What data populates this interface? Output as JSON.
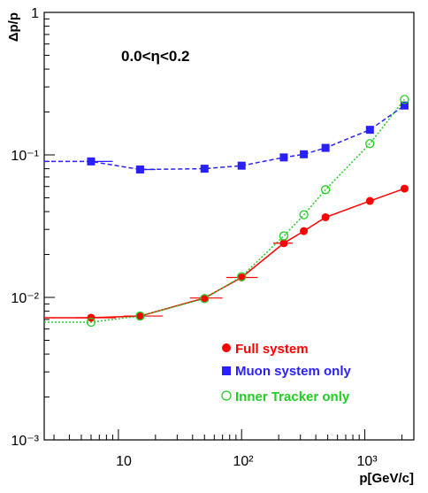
{
  "chart_data": {
    "type": "scatter",
    "title": "",
    "annotation": "0.0<η<0.2",
    "xlabel": "p[GeV/c]",
    "ylabel": "Δp/p",
    "xscale": "log",
    "yscale": "log",
    "xlim": [
      2.5,
      2500
    ],
    "ylim": [
      0.001,
      1
    ],
    "x_tick_labels": [
      "10",
      "10²",
      "10³"
    ],
    "y_tick_labels": [
      "10⁻³",
      "10⁻²",
      "10⁻¹",
      "1"
    ],
    "grid": false,
    "legend_position": "bottom-right",
    "series": [
      {
        "name": "Full system",
        "color": "#ff0000",
        "marker": "filled-circle",
        "line": "solid",
        "x": [
          6,
          15,
          50,
          100,
          220,
          320,
          480,
          1100,
          2100
        ],
        "y": [
          0.0072,
          0.0074,
          0.0099,
          0.0138,
          0.024,
          0.0292,
          0.0365,
          0.0475,
          0.058
        ],
        "xerr": [
          [
            1.5,
            3.5
          ],
          [
            4,
            8
          ],
          [
            12,
            20
          ],
          [
            25,
            35
          ],
          [
            40,
            40
          ],
          [
            0,
            0
          ],
          [
            0,
            0
          ],
          [
            0,
            0
          ],
          [
            0,
            0
          ]
        ]
      },
      {
        "name": "Muon system only",
        "color": "#2a1fff",
        "marker": "filled-square",
        "line": "dashed",
        "x": [
          6,
          15,
          50,
          100,
          220,
          320,
          480,
          1100,
          2100
        ],
        "y": [
          0.09,
          0.079,
          0.08,
          0.084,
          0.096,
          0.101,
          0.112,
          0.15,
          0.222
        ],
        "xerr": [
          [
            0,
            3
          ],
          [
            0,
            5
          ],
          [
            0,
            0
          ],
          [
            0,
            0
          ],
          [
            0,
            0
          ],
          [
            0,
            0
          ],
          [
            0,
            0
          ],
          [
            0,
            0
          ],
          [
            0,
            0
          ]
        ]
      },
      {
        "name": "Inner Tracker only",
        "color": "#22cc22",
        "marker": "open-circle",
        "line": "dotted",
        "x": [
          6,
          15,
          50,
          100,
          220,
          320,
          480,
          1100,
          2100
        ],
        "y": [
          0.0067,
          0.0074,
          0.0098,
          0.014,
          0.027,
          0.038,
          0.057,
          0.12,
          0.245
        ],
        "xerr": [
          [
            0,
            0
          ],
          [
            0,
            0
          ],
          [
            0,
            0
          ],
          [
            0,
            0
          ],
          [
            0,
            0
          ],
          [
            0,
            0
          ],
          [
            0,
            0
          ],
          [
            0,
            0
          ],
          [
            0,
            0
          ]
        ]
      }
    ]
  }
}
